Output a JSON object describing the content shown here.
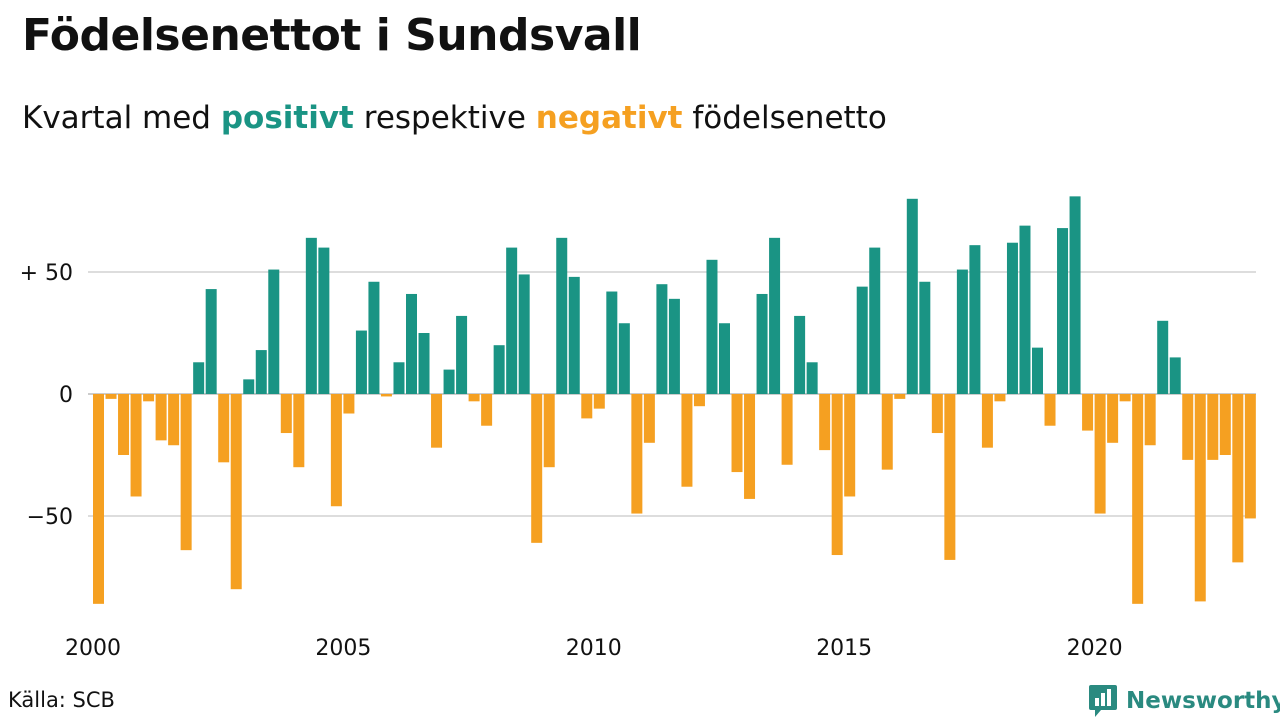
{
  "title": "Födelsenettot i Sundsvall",
  "subtitle": {
    "prefix": "Kvartal med",
    "positive_word": "positivt",
    "middle": "respektive",
    "negative_word": "negativt",
    "suffix": "födelsenetto"
  },
  "source": "Källa: SCB",
  "brand": {
    "name": "Newsworthy",
    "icon": "bar-chart-speech-bubble-icon"
  },
  "colors": {
    "positive": "#1a9484",
    "negative": "#f5a021",
    "grid": "#dddddd",
    "brand": "#2a8a80"
  },
  "chart_data": {
    "type": "bar",
    "x_unit": "quarter",
    "x_start": "2000 Q1",
    "x_ticks": [
      "2000",
      "2005",
      "2010",
      "2015",
      "2020"
    ],
    "y_ticks": [
      {
        "value": 50,
        "label": "+ 50"
      },
      {
        "value": 0,
        "label": "0"
      },
      {
        "value": -50,
        "label": "−50"
      }
    ],
    "ylim": [
      -92,
      90
    ],
    "grid": true,
    "values": [
      -86,
      -2,
      -25,
      -42,
      -3,
      -19,
      -21,
      -64,
      13,
      43,
      -28,
      -80,
      6,
      18,
      51,
      -16,
      -30,
      64,
      60,
      -46,
      -8,
      26,
      46,
      -1,
      13,
      41,
      25,
      -22,
      10,
      32,
      -3,
      -13,
      20,
      60,
      49,
      -61,
      -30,
      64,
      48,
      -10,
      -6,
      42,
      29,
      -49,
      -20,
      45,
      39,
      -38,
      -5,
      55,
      29,
      -32,
      -43,
      41,
      64,
      -29,
      32,
      13,
      -23,
      -66,
      -42,
      44,
      60,
      -31,
      -2,
      80,
      46,
      -16,
      -68,
      51,
      61,
      -22,
      -3,
      62,
      69,
      19,
      -13,
      68,
      81,
      -15,
      -49,
      -20,
      -3,
      -86,
      -21,
      30,
      15,
      -27,
      -85,
      -27,
      -25,
      -69,
      -51
    ]
  }
}
